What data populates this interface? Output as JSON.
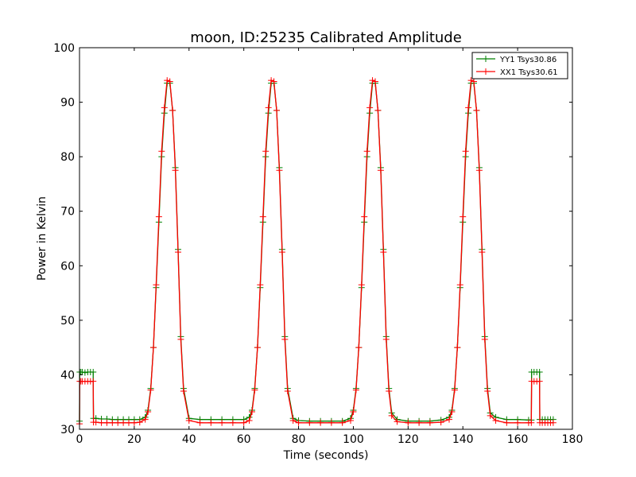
{
  "chart_data": {
    "type": "line",
    "title": "moon, ID:25235 Calibrated Amplitude",
    "xlabel": "Time (seconds)",
    "ylabel": "Power in Kelvin",
    "xlim": [
      0,
      180
    ],
    "ylim": [
      30,
      100
    ],
    "xticks": [
      0,
      20,
      40,
      60,
      80,
      100,
      120,
      140,
      160,
      180
    ],
    "yticks": [
      30,
      40,
      50,
      60,
      70,
      80,
      90,
      100
    ],
    "xtick_labels": [
      "0",
      "20",
      "40",
      "60",
      "80",
      "100",
      "120",
      "140",
      "160",
      "180"
    ],
    "ytick_labels": [
      "30",
      "40",
      "50",
      "60",
      "70",
      "80",
      "90",
      "100"
    ],
    "grid": false,
    "legend_position": "top-right",
    "marker": "+",
    "series": [
      {
        "name": "YY1 Tsys30.86",
        "color": "#008000",
        "x": [
          0,
          0.1,
          0.5,
          1,
          2,
          3,
          4,
          5,
          5.1,
          6,
          8,
          10,
          12,
          14,
          16,
          18,
          20,
          22,
          24,
          25,
          26,
          27,
          28,
          29,
          30,
          31,
          32,
          33,
          34,
          35,
          36,
          37,
          38,
          40,
          44,
          48,
          52,
          56,
          60,
          62,
          63,
          64,
          65,
          66,
          67,
          68,
          69,
          70,
          71,
          72,
          73,
          74,
          75,
          76,
          78,
          80,
          84,
          88,
          92,
          96,
          99,
          100,
          101,
          102,
          103,
          104,
          105,
          106,
          107,
          108,
          109,
          110,
          111,
          112,
          113,
          114,
          116,
          120,
          124,
          128,
          132,
          135,
          136,
          137,
          138,
          139,
          140,
          141,
          142,
          143,
          144,
          145,
          146,
          147,
          148,
          149,
          150,
          152,
          156,
          160,
          164,
          165,
          165.1,
          166,
          167,
          168,
          168.1,
          169,
          170,
          171,
          172,
          173
        ],
        "values": [
          31.5,
          40.5,
          40.5,
          40.5,
          40.4,
          40.5,
          40.5,
          40.5,
          32.0,
          32.0,
          31.9,
          31.9,
          31.8,
          31.8,
          31.8,
          31.8,
          31.8,
          31.8,
          32.2,
          33.5,
          37.5,
          45.0,
          56.0,
          68.0,
          80.0,
          88.0,
          93.5,
          93.5,
          88.5,
          78.0,
          63.0,
          47.0,
          37.5,
          32.0,
          31.8,
          31.8,
          31.8,
          31.8,
          31.8,
          32.2,
          33.5,
          37.5,
          45.0,
          56.0,
          68.0,
          80.0,
          88.0,
          93.5,
          93.5,
          88.5,
          78.0,
          63.0,
          47.0,
          37.5,
          32.0,
          31.6,
          31.5,
          31.5,
          31.5,
          31.5,
          32.0,
          33.5,
          37.5,
          45.0,
          56.0,
          68.0,
          80.0,
          88.0,
          93.5,
          93.5,
          88.5,
          78.0,
          63.0,
          47.0,
          37.5,
          33.0,
          31.8,
          31.5,
          31.5,
          31.5,
          31.7,
          32.2,
          33.5,
          37.5,
          45.0,
          56.0,
          68.0,
          80.0,
          88.0,
          93.5,
          93.5,
          88.5,
          78.0,
          63.0,
          47.0,
          37.5,
          33.0,
          32.2,
          31.8,
          31.8,
          31.7,
          31.7,
          40.5,
          40.5,
          40.5,
          40.5,
          31.8,
          31.8,
          31.8,
          31.8,
          31.8,
          31.8
        ]
      },
      {
        "name": "XX1 Tsys30.61",
        "color": "#ff0000",
        "x": [
          0,
          0.1,
          0.5,
          1,
          2,
          3,
          4,
          5,
          5.1,
          6,
          8,
          10,
          12,
          14,
          16,
          18,
          20,
          22,
          24,
          25,
          26,
          27,
          28,
          29,
          30,
          31,
          32,
          33,
          34,
          35,
          36,
          37,
          38,
          40,
          44,
          48,
          52,
          56,
          60,
          62,
          63,
          64,
          65,
          66,
          67,
          68,
          69,
          70,
          71,
          72,
          73,
          74,
          75,
          76,
          78,
          80,
          84,
          88,
          92,
          96,
          99,
          100,
          101,
          102,
          103,
          104,
          105,
          106,
          107,
          108,
          109,
          110,
          111,
          112,
          113,
          114,
          116,
          120,
          124,
          128,
          132,
          135,
          136,
          137,
          138,
          139,
          140,
          141,
          142,
          143,
          144,
          145,
          146,
          147,
          148,
          149,
          150,
          152,
          156,
          160,
          164,
          165,
          165.1,
          166,
          167,
          168,
          168.1,
          169,
          170,
          171,
          172,
          173
        ],
        "values": [
          31.0,
          38.8,
          38.8,
          38.8,
          38.8,
          38.8,
          38.8,
          38.8,
          31.3,
          31.3,
          31.2,
          31.2,
          31.2,
          31.2,
          31.2,
          31.2,
          31.2,
          31.3,
          31.8,
          33.2,
          37.2,
          45.0,
          56.5,
          69.0,
          81.0,
          89.0,
          94.0,
          93.8,
          88.5,
          77.5,
          62.5,
          46.5,
          37.0,
          31.6,
          31.2,
          31.2,
          31.2,
          31.2,
          31.2,
          31.6,
          33.2,
          37.2,
          45.0,
          56.5,
          69.0,
          81.0,
          89.0,
          94.0,
          93.8,
          88.5,
          77.5,
          62.5,
          46.5,
          37.0,
          31.6,
          31.2,
          31.2,
          31.2,
          31.2,
          31.2,
          31.6,
          33.2,
          37.2,
          45.0,
          56.5,
          69.0,
          81.0,
          89.0,
          94.0,
          93.8,
          88.5,
          77.5,
          62.5,
          46.5,
          37.0,
          32.5,
          31.4,
          31.2,
          31.2,
          31.2,
          31.3,
          31.8,
          33.2,
          37.2,
          45.0,
          56.5,
          69.0,
          81.0,
          89.0,
          94.0,
          93.8,
          88.5,
          77.5,
          62.5,
          46.5,
          37.0,
          32.5,
          31.6,
          31.2,
          31.2,
          31.2,
          31.2,
          38.8,
          38.8,
          38.8,
          38.8,
          31.2,
          31.2,
          31.2,
          31.2,
          31.2,
          31.2
        ]
      }
    ]
  }
}
